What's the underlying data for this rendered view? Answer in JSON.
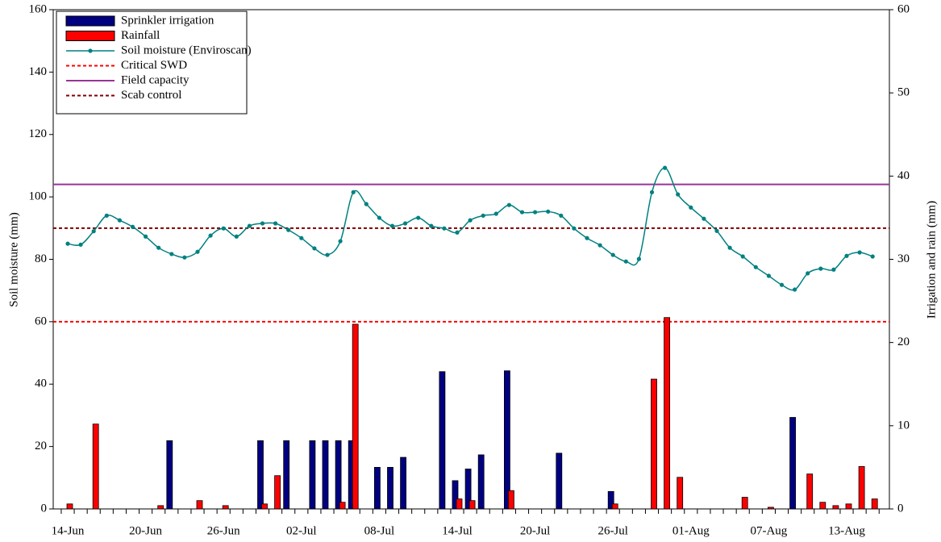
{
  "chart_data": {
    "type": "combo",
    "y_label": "Soil moisture (mm)",
    "y2_label": "Irrigation and rain (mm)",
    "categories": [
      "14-Jun",
      null,
      null,
      null,
      null,
      null,
      "20-Jun",
      null,
      null,
      null,
      null,
      null,
      "26-Jun",
      null,
      null,
      null,
      null,
      null,
      "02-Jul",
      null,
      null,
      null,
      null,
      null,
      "08-Jul",
      null,
      null,
      null,
      null,
      null,
      "14-Jul",
      null,
      null,
      null,
      null,
      null,
      "20-Jul",
      null,
      null,
      null,
      null,
      null,
      "26-Jul",
      null,
      null,
      null,
      null,
      null,
      "01-Aug",
      null,
      null,
      null,
      null,
      null,
      "07-Aug",
      null,
      null,
      null,
      null,
      null,
      "13-Aug",
      null,
      null,
      null
    ],
    "ylim": [
      0,
      160
    ],
    "yticks": [
      0,
      20,
      40,
      60,
      80,
      100,
      120,
      140,
      160
    ],
    "y2lim": [
      0,
      60
    ],
    "y2ticks": [
      0,
      10,
      20,
      30,
      40,
      50,
      60
    ],
    "series": [
      {
        "name": "Sprinkler irrigation",
        "type": "bar",
        "axis": "y2",
        "color": "#000080",
        "values": [
          0,
          0,
          0,
          0,
          0,
          0,
          0,
          0,
          8.2,
          0,
          0,
          0,
          0,
          0,
          0,
          8.2,
          0,
          8.2,
          0,
          8.2,
          8.2,
          8.2,
          8.2,
          0,
          5,
          5,
          6.2,
          0,
          0,
          16.5,
          3.4,
          4.8,
          6.5,
          0,
          16.6,
          0,
          0,
          0,
          6.7,
          0,
          0,
          0,
          2.1,
          0,
          0,
          0,
          0,
          0,
          0,
          0,
          0,
          0,
          0,
          0,
          0,
          0,
          11,
          0,
          0,
          0,
          0,
          0,
          0,
          0
        ]
      },
      {
        "name": "Rainfall",
        "type": "bar",
        "axis": "y2",
        "color": "#ff0000",
        "values": [
          0.6,
          0,
          10.2,
          0,
          0,
          0,
          0,
          0.4,
          0,
          0,
          1,
          0,
          0.4,
          0,
          0,
          0.6,
          4,
          0,
          0,
          0,
          0,
          0.8,
          22.2,
          0,
          0,
          0,
          0,
          0,
          0,
          0,
          1.2,
          1,
          0,
          0,
          2.2,
          0,
          0,
          0,
          0,
          0,
          0,
          0,
          0.6,
          0,
          0,
          15.6,
          23,
          3.8,
          0,
          0,
          0,
          0,
          1.4,
          0,
          0.2,
          0,
          0,
          4.2,
          0.8,
          0.4,
          0.6,
          5.1,
          1.2,
          0
        ]
      },
      {
        "name": "Soil moisture (Enviroscan)",
        "type": "line",
        "color": "#008080",
        "values": [
          85,
          84.7,
          89,
          94,
          92.5,
          90.4,
          87.3,
          83.7,
          81.7,
          80.6,
          82.4,
          87.6,
          89.9,
          87.3,
          90.7,
          91.5,
          91.5,
          89.4,
          86.8,
          83.5,
          81.4,
          85.8,
          101.5,
          97.7,
          93.3,
          90.7,
          91.5,
          93.3,
          90.7,
          89.9,
          88.6,
          92.5,
          94,
          94.6,
          97.4,
          95.1,
          95.1,
          95.3,
          94,
          89.9,
          86.8,
          84.5,
          81.4,
          79.3,
          80.1,
          101.5,
          109.3,
          100.8,
          96.6,
          93,
          89.1,
          83.7,
          80.9,
          77.5,
          74.7,
          71.8,
          70.3,
          75.5,
          77,
          76.7,
          81.1,
          82.2,
          80.9,
          null
        ]
      }
    ],
    "reference_lines": [
      {
        "name": "Critical SWD",
        "color": "#ff0000",
        "style": "dashed",
        "value": 60
      },
      {
        "name": "Field capacity",
        "color": "#993399",
        "style": "solid",
        "value": 104
      },
      {
        "name": "Scab control",
        "color": "#800000",
        "style": "dashed",
        "value": 90
      }
    ],
    "legend": "upper left"
  }
}
